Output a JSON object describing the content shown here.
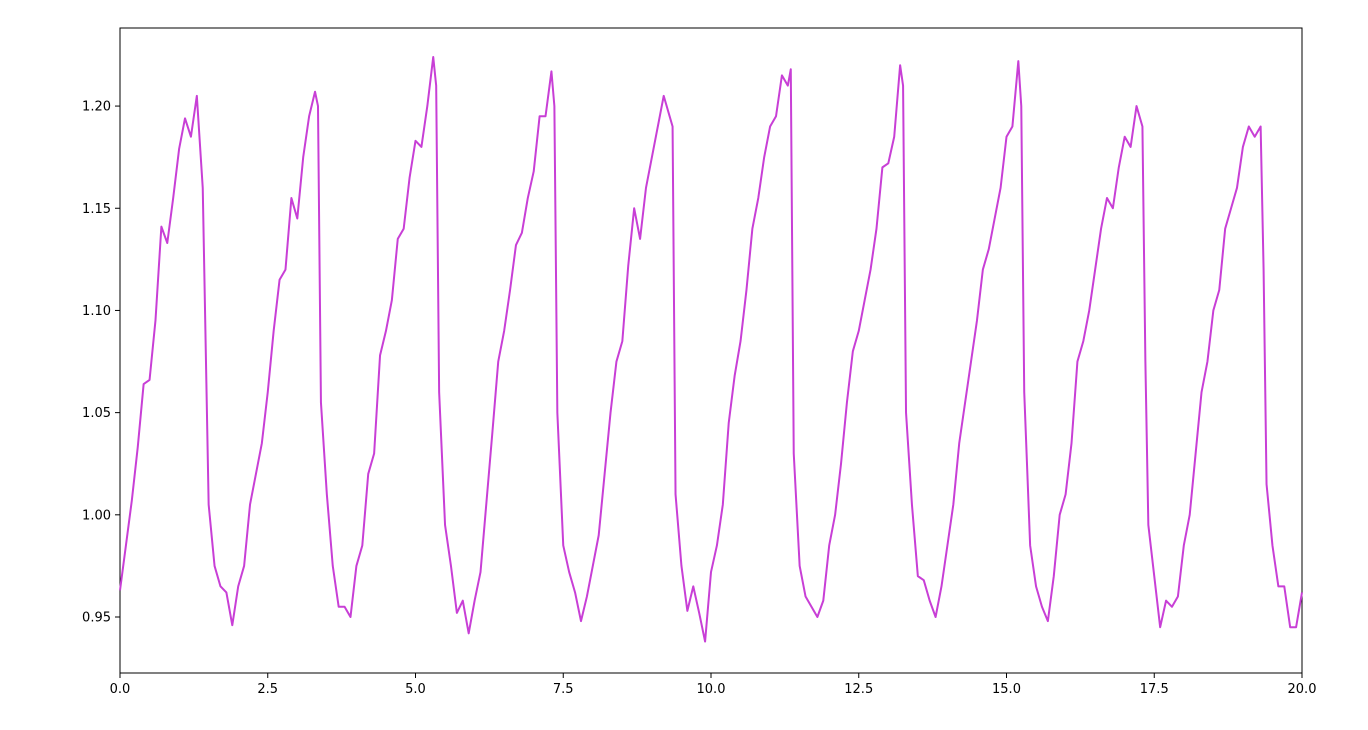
{
  "chart_data": {
    "type": "line",
    "color": "#c83fd6",
    "xlim": [
      0,
      20
    ],
    "ylim": [
      0.9226,
      1.2382
    ],
    "xticks": [
      {
        "value": 0,
        "label": "0.0"
      },
      2.5,
      {
        "value": 5,
        "label": "5.0"
      },
      7.5,
      {
        "value": 10,
        "label": "10.0"
      },
      12.5,
      {
        "value": 15,
        "label": "15.0"
      },
      17.5,
      {
        "value": 20,
        "label": "20.0"
      }
    ],
    "yticks": [
      0.95,
      {
        "value": 1,
        "label": "1.00"
      },
      1.05,
      {
        "value": 1.1,
        "label": "1.10"
      },
      1.15,
      {
        "value": 1.2,
        "label": "1.20"
      }
    ],
    "x": [
      0,
      0.1,
      0.2,
      0.3,
      0.4,
      0.5,
      0.6,
      0.7,
      0.8,
      0.9,
      1.0,
      1.1,
      1.2,
      1.3,
      1.4,
      1.5,
      1.6,
      1.7,
      1.8,
      1.9,
      2.0,
      2.1,
      2.2,
      2.3,
      2.4,
      2.5,
      2.6,
      2.7,
      2.8,
      2.9,
      3.0,
      3.1,
      3.2,
      3.3,
      3.35,
      3.4,
      3.5,
      3.6,
      3.7,
      3.8,
      3.9,
      4.0,
      4.1,
      4.2,
      4.3,
      4.4,
      4.5,
      4.6,
      4.7,
      4.8,
      4.9,
      5.0,
      5.1,
      5.2,
      5.3,
      5.35,
      5.4,
      5.5,
      5.6,
      5.7,
      5.8,
      5.9,
      6.0,
      6.1,
      6.2,
      6.3,
      6.4,
      6.5,
      6.6,
      6.7,
      6.8,
      6.9,
      7.0,
      7.1,
      7.2,
      7.3,
      7.35,
      7.4,
      7.5,
      7.6,
      7.7,
      7.8,
      7.9,
      8.0,
      8.1,
      8.2,
      8.3,
      8.4,
      8.5,
      8.6,
      8.7,
      8.8,
      8.9,
      9.0,
      9.1,
      9.2,
      9.3,
      9.35,
      9.4,
      9.5,
      9.6,
      9.7,
      9.8,
      9.9,
      10.0,
      10.1,
      10.2,
      10.3,
      10.4,
      10.5,
      10.6,
      10.7,
      10.8,
      10.9,
      11.0,
      11.1,
      11.2,
      11.3,
      11.35,
      11.4,
      11.5,
      11.6,
      11.7,
      11.8,
      11.9,
      12.0,
      12.1,
      12.2,
      12.3,
      12.4,
      12.5,
      12.6,
      12.7,
      12.8,
      12.9,
      13.0,
      13.1,
      13.2,
      13.25,
      13.3,
      13.4,
      13.5,
      13.6,
      13.7,
      13.8,
      13.9,
      14.0,
      14.1,
      14.2,
      14.3,
      14.4,
      14.5,
      14.6,
      14.7,
      14.8,
      14.9,
      15.0,
      15.1,
      15.2,
      15.25,
      15.3,
      15.4,
      15.5,
      15.6,
      15.7,
      15.8,
      15.9,
      16.0,
      16.1,
      16.2,
      16.3,
      16.4,
      16.5,
      16.6,
      16.7,
      16.8,
      16.9,
      17.0,
      17.1,
      17.2,
      17.3,
      17.35,
      17.4,
      17.5,
      17.6,
      17.7,
      17.8,
      17.9,
      18.0,
      18.1,
      18.2,
      18.3,
      18.4,
      18.5,
      18.6,
      18.7,
      18.8,
      18.9,
      19.0,
      19.1,
      19.2,
      19.3,
      19.35,
      19.4,
      19.5,
      19.6,
      19.7,
      19.8,
      19.9,
      20.0
    ],
    "values": [
      0.963,
      0.985,
      1.007,
      1.033,
      1.064,
      1.066,
      1.095,
      1.141,
      1.133,
      1.155,
      1.179,
      1.194,
      1.185,
      1.205,
      1.16,
      1.005,
      0.975,
      0.965,
      0.962,
      0.946,
      0.965,
      0.975,
      1.005,
      1.02,
      1.035,
      1.06,
      1.09,
      1.115,
      1.12,
      1.155,
      1.145,
      1.175,
      1.195,
      1.207,
      1.2,
      1.055,
      1.01,
      0.975,
      0.955,
      0.955,
      0.95,
      0.975,
      0.985,
      1.02,
      1.03,
      1.078,
      1.09,
      1.105,
      1.135,
      1.14,
      1.165,
      1.183,
      1.18,
      1.2,
      1.224,
      1.21,
      1.06,
      0.995,
      0.975,
      0.952,
      0.958,
      0.942,
      0.958,
      0.972,
      1.006,
      1.04,
      1.075,
      1.09,
      1.11,
      1.132,
      1.138,
      1.155,
      1.168,
      1.195,
      1.195,
      1.217,
      1.2,
      1.05,
      0.985,
      0.972,
      0.962,
      0.948,
      0.96,
      0.975,
      0.99,
      1.02,
      1.05,
      1.075,
      1.085,
      1.122,
      1.15,
      1.135,
      1.16,
      1.175,
      1.19,
      1.205,
      1.195,
      1.19,
      1.01,
      0.975,
      0.953,
      0.965,
      0.952,
      0.938,
      0.972,
      0.985,
      1.005,
      1.045,
      1.068,
      1.085,
      1.11,
      1.14,
      1.155,
      1.175,
      1.19,
      1.195,
      1.215,
      1.21,
      1.218,
      1.03,
      0.975,
      0.96,
      0.955,
      0.95,
      0.958,
      0.985,
      1.0,
      1.025,
      1.055,
      1.08,
      1.09,
      1.105,
      1.12,
      1.14,
      1.17,
      1.172,
      1.185,
      1.22,
      1.21,
      1.05,
      1.005,
      0.97,
      0.968,
      0.958,
      0.95,
      0.965,
      0.985,
      1.005,
      1.035,
      1.055,
      1.075,
      1.095,
      1.12,
      1.13,
      1.145,
      1.16,
      1.185,
      1.19,
      1.222,
      1.2,
      1.06,
      0.985,
      0.965,
      0.955,
      0.948,
      0.97,
      1.0,
      1.01,
      1.035,
      1.075,
      1.085,
      1.1,
      1.12,
      1.14,
      1.155,
      1.15,
      1.17,
      1.185,
      1.18,
      1.2,
      1.19,
      1.075,
      0.995,
      0.97,
      0.945,
      0.958,
      0.955,
      0.96,
      0.985,
      1.0,
      1.03,
      1.06,
      1.075,
      1.1,
      1.11,
      1.14,
      1.15,
      1.16,
      1.18,
      1.19,
      1.185,
      1.19,
      1.12,
      1.015,
      0.985,
      0.965,
      0.965,
      0.945,
      0.945,
      0.962
    ]
  }
}
